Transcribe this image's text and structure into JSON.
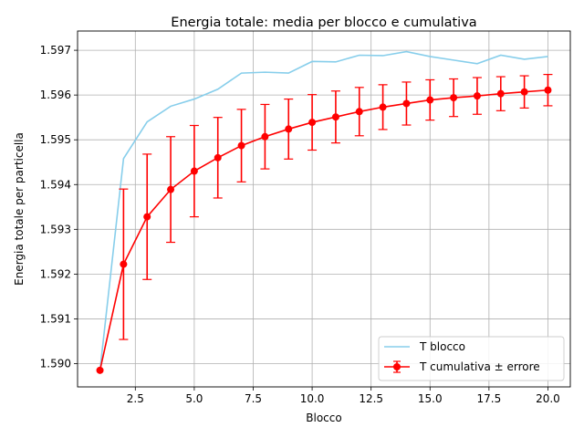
{
  "chart_data": {
    "type": "line",
    "title": "Energia totale: media per blocco e cumulativa",
    "xlabel": "Blocco",
    "ylabel": "Energia totale per particella",
    "xlim": [
      0.05,
      20.95
    ],
    "ylim": [
      1.58948,
      1.59743
    ],
    "xticks": [
      2.5,
      5.0,
      7.5,
      10.0,
      12.5,
      15.0,
      17.5,
      20.0
    ],
    "xtick_labels": [
      "2.5",
      "5.0",
      "7.5",
      "10.0",
      "12.5",
      "15.0",
      "17.5",
      "20.0"
    ],
    "yticks": [
      1.59,
      1.591,
      1.592,
      1.593,
      1.594,
      1.595,
      1.596,
      1.597
    ],
    "ytick_labels": [
      "1.590",
      "1.591",
      "1.592",
      "1.593",
      "1.594",
      "1.595",
      "1.596",
      "1.597"
    ],
    "grid": true,
    "legend_position": "lower-right",
    "x": [
      1,
      2,
      3,
      4,
      5,
      6,
      7,
      8,
      9,
      10,
      11,
      12,
      13,
      14,
      15,
      16,
      17,
      18,
      19,
      20
    ],
    "series": [
      {
        "name": "T blocco",
        "style": "line",
        "color": "#87ceeb",
        "values": [
          1.58985,
          1.59458,
          1.5954,
          1.59575,
          1.59591,
          1.59613,
          1.59649,
          1.59651,
          1.59649,
          1.59675,
          1.59674,
          1.59689,
          1.59688,
          1.59697,
          1.59686,
          1.59678,
          1.5967,
          1.59689,
          1.5968,
          1.59686
        ]
      },
      {
        "name": "T cumulativa ± errore",
        "style": "errorbar",
        "color": "#ff0000",
        "values": [
          1.58985,
          1.59222,
          1.59328,
          1.59389,
          1.5943,
          1.5946,
          1.59487,
          1.59507,
          1.59524,
          1.59539,
          1.59551,
          1.59563,
          1.59573,
          1.59581,
          1.59589,
          1.59594,
          1.59598,
          1.59603,
          1.59607,
          1.59611
        ],
        "errors": [
          0,
          0.00168,
          0.0014,
          0.00118,
          0.00102,
          0.0009,
          0.00081,
          0.00072,
          0.00067,
          0.00062,
          0.00058,
          0.00054,
          0.0005,
          0.00048,
          0.00045,
          0.00042,
          0.00041,
          0.00038,
          0.00036,
          0.00035
        ]
      }
    ]
  }
}
